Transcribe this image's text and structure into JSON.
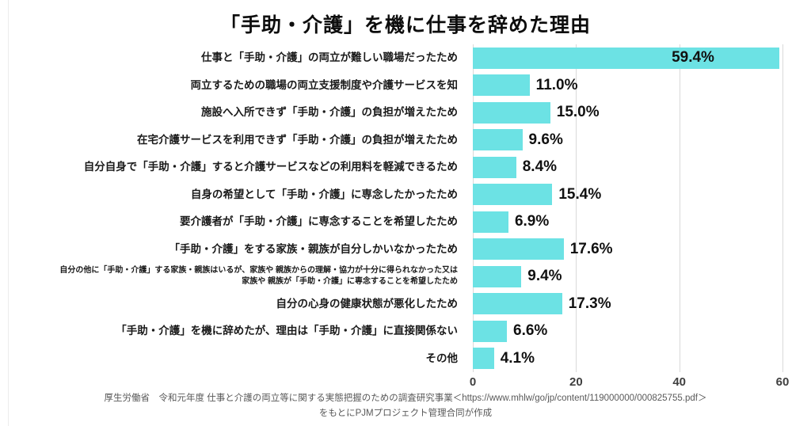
{
  "title": "「手助・介護」を機に仕事を辞めた理由",
  "colors": {
    "bar": "#6CE2E4",
    "grid": "#d9d9d9",
    "accent_text": "#111111",
    "footer_text": "#595959"
  },
  "chart_data": {
    "type": "bar",
    "orientation": "horizontal",
    "title": "「手助・介護」を機に仕事を辞めた理由",
    "xlabel": "",
    "ylabel": "",
    "xlim": [
      0,
      60
    ],
    "x_ticks": [
      0,
      20,
      40,
      60
    ],
    "grid": true,
    "legend": false,
    "categories": [
      "仕事と「手助・介護」の両立が難しい職場だったため",
      "両立するための職場の両立支援制度や介護サービスを知",
      "施設へ入所できず「手助・介護」の負担が増えたため",
      "在宅介護サービスを利用できず「手助・介護」の負担が増えたため",
      "自分自身で「手助・介護」すると介護サービスなどの利用料を軽減できるため",
      "自身の希望として「手助・介護」に専念したかったため",
      "要介護者が「手助・介護」に専念することを希望したため",
      "「手助・介護」をする家族・親族が自分しかいなかったため",
      "自分の他に「手助・介護」する家族・親族はいるが、家族や 親族からの理解・協力が十分に得られなかった又は\n家族や 親族が「手助・介護」に専念することを希望したため",
      "自分の心身の健康状態が悪化したため",
      "「手助・介護」を機に辞めたが、理由は「手助・介護」に直接関係ない",
      "その他"
    ],
    "values": [
      59.4,
      11.0,
      15.0,
      9.6,
      8.4,
      15.4,
      6.9,
      17.6,
      9.4,
      17.3,
      6.6,
      4.1
    ],
    "labels": [
      "59.4%",
      "11.0%",
      "15.0%",
      "9.6%",
      "8.4%",
      "15.4%",
      "6.9%",
      "17.6%",
      "9.4%",
      "17.3%",
      "6.6%",
      "4.1%"
    ]
  },
  "footer": {
    "line1": "厚生労働省　令和元年度 仕事と介護の両立等に関する実態把握のための調査研究事業＜https://www.mhlw/go/jp/content/119000000/000825755.pdf＞",
    "line2": "をもとにPJMプロジェクト管理合同が作成"
  }
}
